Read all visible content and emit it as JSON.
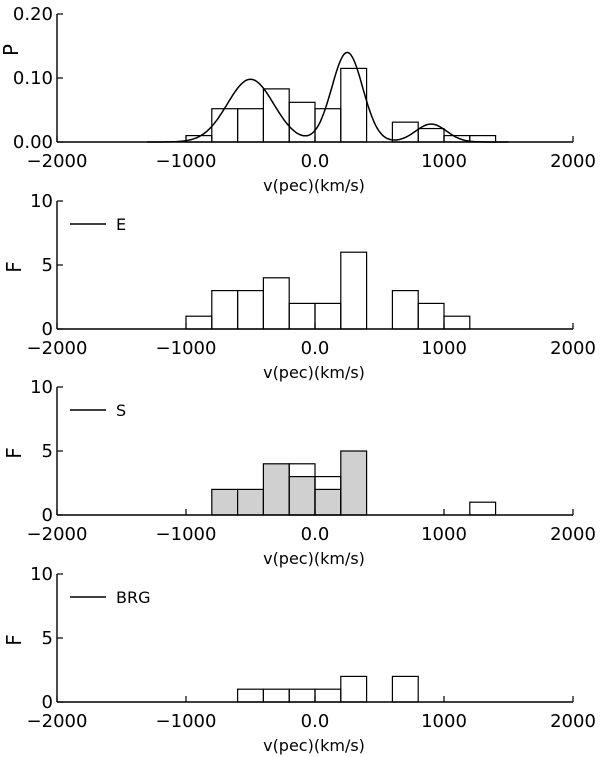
{
  "chart_data": [
    {
      "type": "bar",
      "ylabel": "P",
      "xlabel": "v(pec)(km/s)",
      "xlim": [
        -2000,
        2000
      ],
      "ylim": [
        0,
        0.2
      ],
      "xticks": [
        -2000,
        -1000,
        0,
        1000,
        2000
      ],
      "xticklabels": [
        "−2000",
        "−1000",
        "0.0",
        "1000",
        "2000"
      ],
      "yticks": [
        0,
        0.1,
        0.2
      ],
      "yticklabels": [
        "0.00",
        "0.10",
        "0.20"
      ],
      "bin_width": 200,
      "bins": [
        {
          "x0": -1000,
          "value": 0.01
        },
        {
          "x0": -800,
          "value": 0.052
        },
        {
          "x0": -600,
          "value": 0.052
        },
        {
          "x0": -400,
          "value": 0.083
        },
        {
          "x0": -200,
          "value": 0.062
        },
        {
          "x0": 0,
          "value": 0.052
        },
        {
          "x0": 200,
          "value": 0.115
        },
        {
          "x0": 600,
          "value": 0.031
        },
        {
          "x0": 800,
          "value": 0.021
        },
        {
          "x0": 1000,
          "value": 0.01
        },
        {
          "x0": 1200,
          "value": 0.01
        }
      ],
      "curve": {
        "components": [
          {
            "mean": -500,
            "sigma": 180,
            "amp": 0.098
          },
          {
            "mean": 250,
            "sigma": 120,
            "amp": 0.14
          },
          {
            "mean": 900,
            "sigma": 120,
            "amp": 0.028
          }
        ]
      }
    },
    {
      "type": "bar",
      "ylabel": "F",
      "xlabel": "v(pec)(km/s)",
      "xlim": [
        -2000,
        2000
      ],
      "ylim": [
        0,
        10
      ],
      "xticks": [
        -2000,
        -1000,
        0,
        1000,
        2000
      ],
      "xticklabels": [
        "−2000",
        "−1000",
        "0.0",
        "1000",
        "2000"
      ],
      "yticks": [
        0,
        5,
        10
      ],
      "yticklabels": [
        "0",
        "5",
        "10"
      ],
      "legend": "E",
      "bin_width": 200,
      "bins": [
        {
          "x0": -1000,
          "value": 1
        },
        {
          "x0": -800,
          "value": 3
        },
        {
          "x0": -600,
          "value": 3
        },
        {
          "x0": -400,
          "value": 4
        },
        {
          "x0": -200,
          "value": 2
        },
        {
          "x0": 0,
          "value": 2
        },
        {
          "x0": 200,
          "value": 6
        },
        {
          "x0": 600,
          "value": 3
        },
        {
          "x0": 800,
          "value": 2
        },
        {
          "x0": 1000,
          "value": 1
        }
      ]
    },
    {
      "type": "bar",
      "ylabel": "F",
      "xlabel": "v(pec)(km/s)",
      "xlim": [
        -2000,
        2000
      ],
      "ylim": [
        0,
        10
      ],
      "xticks": [
        -2000,
        -1000,
        0,
        1000,
        2000
      ],
      "xticklabels": [
        "−2000",
        "−1000",
        "0.0",
        "1000",
        "2000"
      ],
      "yticks": [
        0,
        5,
        10
      ],
      "yticklabels": [
        "0",
        "5",
        "10"
      ],
      "legend": "S",
      "bin_width": 200,
      "bins": [
        {
          "x0": -200,
          "value": 4
        },
        {
          "x0": 0,
          "value": 3
        },
        {
          "x0": 1200,
          "value": 1
        }
      ],
      "shaded_bins": [
        {
          "x0": -800,
          "value": 2
        },
        {
          "x0": -600,
          "value": 2
        },
        {
          "x0": -400,
          "value": 4
        },
        {
          "x0": -200,
          "value": 3
        },
        {
          "x0": 0,
          "value": 2
        },
        {
          "x0": 200,
          "value": 5
        }
      ],
      "shade_color": "#d0d0d0"
    },
    {
      "type": "bar",
      "ylabel": "F",
      "xlabel": "v(pec)(km/s)",
      "xlim": [
        -2000,
        2000
      ],
      "ylim": [
        0,
        10
      ],
      "xticks": [
        -2000,
        -1000,
        0,
        1000,
        2000
      ],
      "xticklabels": [
        "−2000",
        "−1000",
        "0.0",
        "1000",
        "2000"
      ],
      "yticks": [
        0,
        5,
        10
      ],
      "yticklabels": [
        "0",
        "5",
        "10"
      ],
      "legend": "BRG",
      "bin_width": 200,
      "bins": [
        {
          "x0": -600,
          "value": 1
        },
        {
          "x0": -400,
          "value": 1
        },
        {
          "x0": -200,
          "value": 1
        },
        {
          "x0": 0,
          "value": 1
        },
        {
          "x0": 200,
          "value": 2
        },
        {
          "x0": 600,
          "value": 2
        }
      ]
    }
  ]
}
